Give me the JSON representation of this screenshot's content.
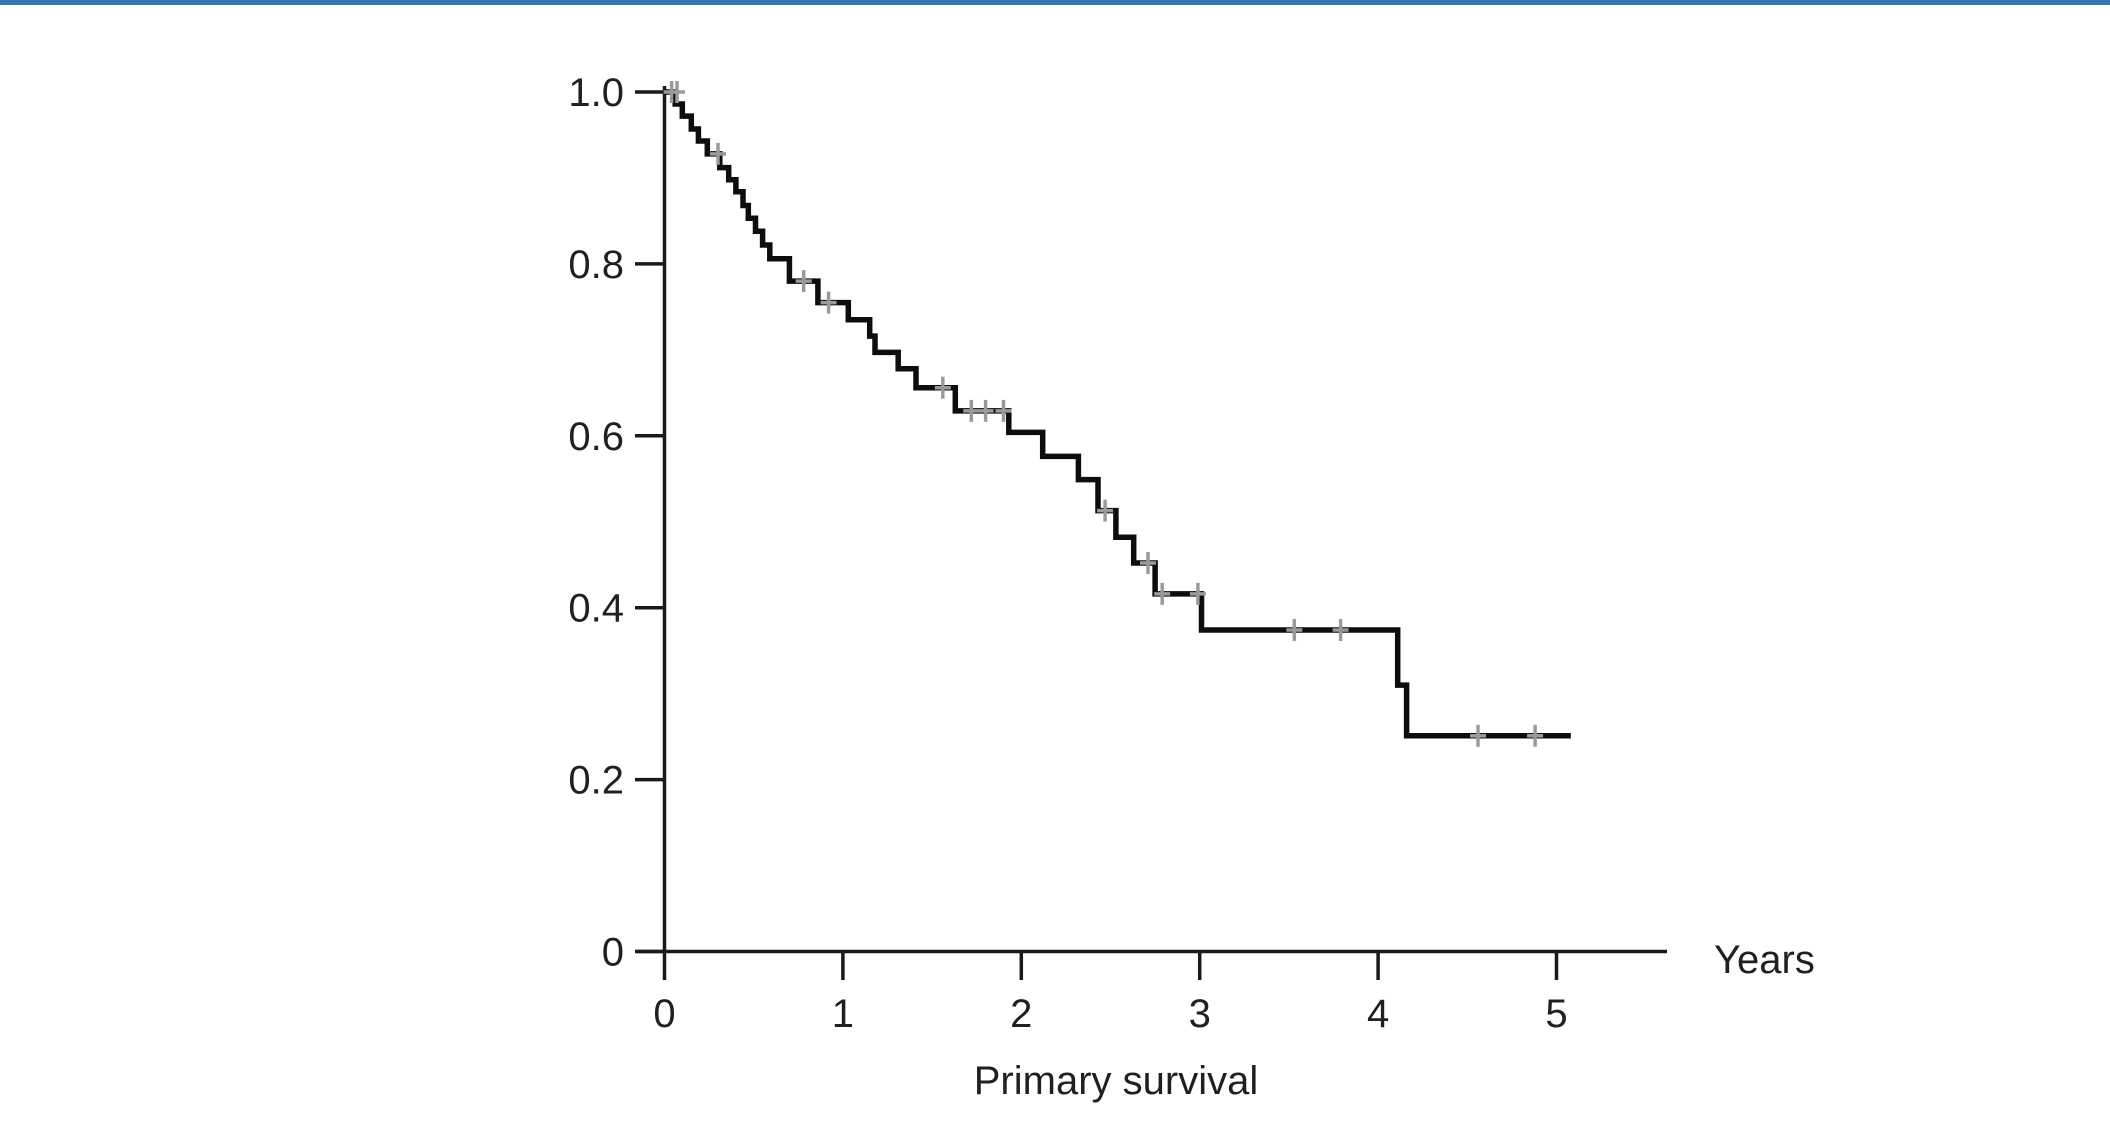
{
  "page": {
    "background_color": "#ffffff",
    "accent_bar_color": "#3d74b0",
    "text_color": "#231f20",
    "axis_color": "#1a1a1a"
  },
  "labels": {
    "x_axis": "Years",
    "caption": "Primary survival"
  },
  "chart_data": {
    "type": "line",
    "subtype": "kaplan-meier-step-curve",
    "title": "Primary survival",
    "xlabel": "Years",
    "ylabel": "",
    "xlim": [
      0,
      5.6
    ],
    "ylim": [
      0,
      1.0
    ],
    "grid": false,
    "legend_position": "none",
    "x_ticks": [
      {
        "label": "0",
        "value": 0
      },
      {
        "label": "1",
        "value": 1
      },
      {
        "label": "2",
        "value": 2
      },
      {
        "label": "3",
        "value": 3
      },
      {
        "label": "4",
        "value": 4
      },
      {
        "label": "5",
        "value": 5
      }
    ],
    "y_ticks": [
      {
        "label": "1.0",
        "value": 1.0
      },
      {
        "label": "0.8",
        "value": 0.8
      },
      {
        "label": "0.6",
        "value": 0.6
      },
      {
        "label": "0.4",
        "value": 0.4
      },
      {
        "label": "0.2",
        "value": 0.2
      },
      {
        "label": "0",
        "value": 0
      }
    ],
    "series": [
      {
        "name": "Primary survival",
        "color": "#0d0d0d",
        "line_width": 5.5,
        "start": [
          0,
          1.0
        ],
        "steps": [
          [
            0.06,
            0.986
          ],
          [
            0.1,
            0.972
          ],
          [
            0.15,
            0.957
          ],
          [
            0.19,
            0.943
          ],
          [
            0.24,
            0.928
          ],
          [
            0.31,
            0.912
          ],
          [
            0.36,
            0.898
          ],
          [
            0.4,
            0.884
          ],
          [
            0.44,
            0.868
          ],
          [
            0.47,
            0.853
          ],
          [
            0.51,
            0.838
          ],
          [
            0.55,
            0.822
          ],
          [
            0.59,
            0.806
          ],
          [
            0.7,
            0.78
          ],
          [
            0.86,
            0.755
          ],
          [
            1.03,
            0.735
          ],
          [
            1.15,
            0.716
          ],
          [
            1.18,
            0.697
          ],
          [
            1.31,
            0.678
          ],
          [
            1.41,
            0.656
          ],
          [
            1.63,
            0.629
          ],
          [
            1.93,
            0.604
          ],
          [
            2.12,
            0.576
          ],
          [
            2.32,
            0.549
          ],
          [
            2.43,
            0.513
          ],
          [
            2.53,
            0.482
          ],
          [
            2.63,
            0.452
          ],
          [
            2.75,
            0.416
          ],
          [
            3.01,
            0.374
          ],
          [
            4.11,
            0.31
          ],
          [
            4.16,
            0.251
          ]
        ],
        "end_time": 5.08,
        "censor_color": "#9a9a9a",
        "censor_marks": [
          [
            0.04,
            1.0
          ],
          [
            0.07,
            1.0
          ],
          [
            0.3,
            0.928
          ],
          [
            0.78,
            0.78
          ],
          [
            0.92,
            0.755
          ],
          [
            1.56,
            0.656
          ],
          [
            1.72,
            0.629
          ],
          [
            1.8,
            0.629
          ],
          [
            1.9,
            0.629
          ],
          [
            2.47,
            0.513
          ],
          [
            2.71,
            0.452
          ],
          [
            2.79,
            0.416
          ],
          [
            2.99,
            0.416
          ],
          [
            3.53,
            0.374
          ],
          [
            3.79,
            0.374
          ],
          [
            4.56,
            0.251
          ],
          [
            4.88,
            0.251
          ]
        ]
      }
    ]
  }
}
